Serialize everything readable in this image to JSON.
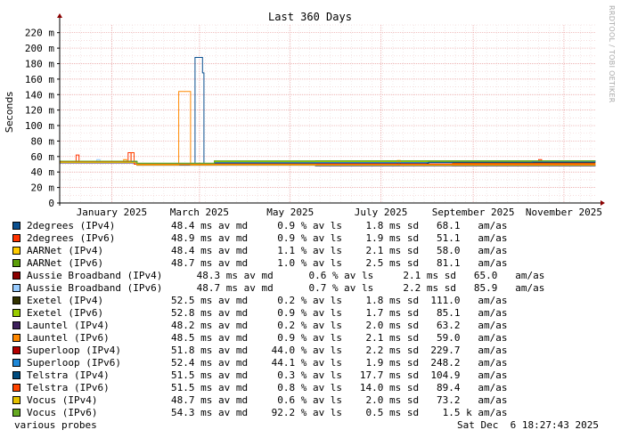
{
  "chart_data": {
    "type": "line",
    "title": "Last 360 Days",
    "ylabel": "Seconds",
    "ylim": [
      0,
      0.23
    ],
    "yticks": [
      {
        "v": 0,
        "label": "0"
      },
      {
        "v": 0.02,
        "label": "20 m"
      },
      {
        "v": 0.04,
        "label": "40 m"
      },
      {
        "v": 0.06,
        "label": "60 m"
      },
      {
        "v": 0.08,
        "label": "80 m"
      },
      {
        "v": 0.1,
        "label": "100 m"
      },
      {
        "v": 0.12,
        "label": "120 m"
      },
      {
        "v": 0.14,
        "label": "140 m"
      },
      {
        "v": 0.16,
        "label": "160 m"
      },
      {
        "v": 0.18,
        "label": "180 m"
      },
      {
        "v": 0.2,
        "label": "200 m"
      },
      {
        "v": 0.22,
        "label": "220 m"
      }
    ],
    "xlim": [
      "2024-12-11",
      "2025-12-06"
    ],
    "xticks": [
      {
        "date": "2025-01-15",
        "label": "January 2025"
      },
      {
        "date": "2025-03-15",
        "label": "March 2025"
      },
      {
        "date": "2025-05-15",
        "label": "May 2025"
      },
      {
        "date": "2025-07-15",
        "label": "July 2025"
      },
      {
        "date": "2025-09-15",
        "label": "September 2025"
      },
      {
        "date": "2025-11-15",
        "label": "November 2025"
      }
    ],
    "grid": true,
    "series": [
      {
        "name": "2degrees (IPv4)",
        "color": "#0a4f8f",
        "stats": "48.4 ms av md     0.9 % av ls    1.8 ms sd   68.1   am/as",
        "points": [
          [
            "2024-12-11",
            0.0527
          ],
          [
            "2025-01-20",
            0.0528
          ],
          [
            "2025-02-01",
            0.0505
          ],
          [
            "2025-03-10",
            0.05
          ],
          [
            "2025-03-12",
            0.188
          ],
          [
            "2025-03-17",
            0.168
          ],
          [
            "2025-03-18",
            0.05
          ],
          [
            "2025-04-01",
            0.049
          ],
          [
            "2025-06-01",
            0.0482
          ],
          [
            "2025-09-01",
            0.048
          ],
          [
            "2025-12-06",
            0.0482
          ]
        ]
      },
      {
        "name": "2degrees (IPv6)",
        "color": "#ff3300",
        "stats": "48.9 ms av md     0.9 % av ls    1.9 ms sd   51.1   am/as",
        "points": [
          [
            "2024-12-11",
            0.053
          ],
          [
            "2024-12-20",
            0.054
          ],
          [
            "2024-12-22",
            0.062
          ],
          [
            "2024-12-24",
            0.0535
          ],
          [
            "2025-01-25",
            0.054
          ],
          [
            "2025-01-26",
            0.065
          ],
          [
            "2025-01-28",
            0.052
          ],
          [
            "2025-02-01",
            0.0495
          ],
          [
            "2025-04-01",
            0.049
          ],
          [
            "2025-10-28",
            0.049
          ],
          [
            "2025-10-29",
            0.056
          ],
          [
            "2025-10-31",
            0.049
          ],
          [
            "2025-12-06",
            0.049
          ]
        ]
      },
      {
        "name": "AARNet (IPv4)",
        "color": "#ffcc00",
        "stats": "48.4 ms av md     1.1 % av ls    2.1 ms sd   58.0   am/as",
        "points": [
          [
            "2024-12-11",
            0.052
          ],
          [
            "2025-02-01",
            0.05
          ],
          [
            "2025-03-25",
            0.052
          ],
          [
            "2025-06-01",
            0.0525
          ],
          [
            "2025-09-01",
            0.051
          ],
          [
            "2025-12-06",
            0.0505
          ]
        ]
      },
      {
        "name": "AARNet (IPv6)",
        "color": "#5c9e0a",
        "stats": "48.7 ms av md     1.0 % av ls    2.5 ms sd   81.1   am/as",
        "points": [
          [
            "2024-12-11",
            0.0535
          ],
          [
            "2025-02-01",
            0.05
          ],
          [
            "2025-03-25",
            0.054
          ],
          [
            "2025-06-01",
            0.0545
          ],
          [
            "2025-12-06",
            0.054
          ]
        ]
      },
      {
        "name": "Aussie Broadband (IPv4)",
        "color": "#8b0000",
        "stats": " 48.3 ms av md      0.6 % av ls     2.1 ms sd   65.0   am/as",
        "points": [
          [
            "2024-12-11",
            0.0522
          ],
          [
            "2025-02-01",
            0.049
          ],
          [
            "2025-06-01",
            0.0485
          ],
          [
            "2025-12-06",
            0.0483
          ]
        ]
      },
      {
        "name": "Aussie Broadband (IPv6)",
        "color": "#99ccff",
        "stats": " 48.7 ms av md      0.7 % av ls     2.2 ms sd   85.9   am/as",
        "points": [
          [
            "2024-12-11",
            0.053
          ],
          [
            "2025-01-05",
            0.056
          ],
          [
            "2025-01-07",
            0.053
          ],
          [
            "2025-02-01",
            0.0495
          ],
          [
            "2025-06-01",
            0.049
          ],
          [
            "2025-12-06",
            0.0488
          ]
        ]
      },
      {
        "name": "Exetel (IPv4)",
        "color": "#333300",
        "stats": "52.5 ms av md     0.2 % av ls    1.8 ms sd  111.0   am/as",
        "points": [
          [
            "2024-12-11",
            0.0525
          ],
          [
            "2025-02-01",
            0.0505
          ],
          [
            "2025-03-25",
            0.0525
          ],
          [
            "2025-06-01",
            0.053
          ],
          [
            "2025-12-06",
            0.0525
          ]
        ]
      },
      {
        "name": "Exetel (IPv6)",
        "color": "#99cc00",
        "stats": "52.8 ms av md     0.9 % av ls    1.7 ms sd   85.1   am/as",
        "points": [
          [
            "2024-12-11",
            0.0532
          ],
          [
            "2025-02-01",
            0.0508
          ],
          [
            "2025-03-25",
            0.0532
          ],
          [
            "2025-06-01",
            0.0535
          ],
          [
            "2025-12-06",
            0.053
          ]
        ]
      },
      {
        "name": "Launtel (IPv4)",
        "color": "#3d1f5c",
        "stats": "48.2 ms av md     0.2 % av ls    2.0 ms sd   63.2   am/as",
        "points": [
          [
            "2024-12-11",
            0.0518
          ],
          [
            "2025-02-01",
            0.0488
          ],
          [
            "2025-06-01",
            0.0482
          ],
          [
            "2025-12-06",
            0.048
          ]
        ]
      },
      {
        "name": "Launtel (IPv6)",
        "color": "#ff8800",
        "stats": "48.5 ms av md     0.9 % av ls    2.1 ms sd   59.0   am/as",
        "points": [
          [
            "2024-12-11",
            0.0526
          ],
          [
            "2025-01-23",
            0.056
          ],
          [
            "2025-01-25",
            0.0526
          ],
          [
            "2025-02-01",
            0.049
          ],
          [
            "2025-02-28",
            0.049
          ],
          [
            "2025-03-01",
            0.144
          ],
          [
            "2025-03-08",
            0.144
          ],
          [
            "2025-03-09",
            0.049
          ],
          [
            "2025-07-25",
            0.049
          ],
          [
            "2025-07-26",
            0.055
          ],
          [
            "2025-07-28",
            0.0488
          ],
          [
            "2025-12-06",
            0.0486
          ]
        ]
      },
      {
        "name": "Superloop (IPv4)",
        "color": "#b30000",
        "stats": "51.8 ms av md    44.0 % av ls    2.2 ms sd  229.7   am/as",
        "points": [
          [
            "2024-12-11",
            0.053
          ],
          [
            "2025-02-01",
            0.05
          ],
          [
            "2025-03-25",
            0.0515
          ],
          [
            "2025-06-01",
            0.0518
          ],
          [
            "2025-12-06",
            0.0515
          ]
        ]
      },
      {
        "name": "Superloop (IPv6)",
        "color": "#1e88d8",
        "stats": "52.4 ms av md    44.1 % av ls    1.9 ms sd  248.2   am/as",
        "points": [
          [
            "2024-12-11",
            0.0534
          ],
          [
            "2025-02-01",
            0.0505
          ],
          [
            "2025-03-25",
            0.052
          ],
          [
            "2025-06-01",
            0.0522
          ],
          [
            "2025-09-01",
            0.0525
          ],
          [
            "2025-10-25",
            0.054
          ],
          [
            "2025-12-06",
            0.053
          ]
        ]
      },
      {
        "name": "Telstra (IPv4)",
        "color": "#004c7f",
        "stats": "51.5 ms av md     0.3 % av ls   17.7 ms sd  104.9   am/as",
        "points": [
          [
            "2024-12-11",
            0.0525
          ],
          [
            "2025-02-01",
            0.05
          ],
          [
            "2025-03-25",
            0.0505
          ],
          [
            "2025-06-01",
            0.0505
          ],
          [
            "2025-08-15",
            0.051
          ],
          [
            "2025-08-16",
            0.0525
          ],
          [
            "2025-12-06",
            0.0525
          ]
        ]
      },
      {
        "name": "Telstra (IPv6)",
        "color": "#ff4400",
        "stats": "51.5 ms av md     0.8 % av ls   14.0 ms sd   89.4   am/as",
        "points": [
          [
            "2024-12-11",
            0.053
          ],
          [
            "2025-01-27",
            0.053
          ],
          [
            "2025-01-28",
            0.065
          ],
          [
            "2025-01-30",
            0.05
          ],
          [
            "2025-06-01",
            0.05
          ],
          [
            "2025-12-06",
            0.0498
          ]
        ]
      },
      {
        "name": "Vocus (IPv4)",
        "color": "#e6c200",
        "stats": "48.7 ms av md     0.6 % av ls    2.0 ms sd   73.2   am/as",
        "points": [
          [
            "2024-12-11",
            0.0524
          ],
          [
            "2025-02-01",
            0.0495
          ],
          [
            "2025-06-01",
            0.049
          ],
          [
            "2025-12-06",
            0.0488
          ]
        ]
      },
      {
        "name": "Vocus (IPv6)",
        "color": "#66aa22",
        "stats": "54.3 ms av md    92.2 % av ls    0.5 ms sd    1.5 k am/as",
        "points": [
          [
            "2024-12-11",
            0.054
          ],
          [
            "2025-02-01",
            0.0515
          ],
          [
            "2025-03-25",
            0.0545
          ],
          [
            "2025-12-06",
            0.0545
          ]
        ]
      }
    ]
  },
  "footer": {
    "probes": "various probes",
    "timestamp": "Sat Dec  6 18:27:43 2025",
    "credit": "RRDTOOL / TOBI OETIKER"
  }
}
